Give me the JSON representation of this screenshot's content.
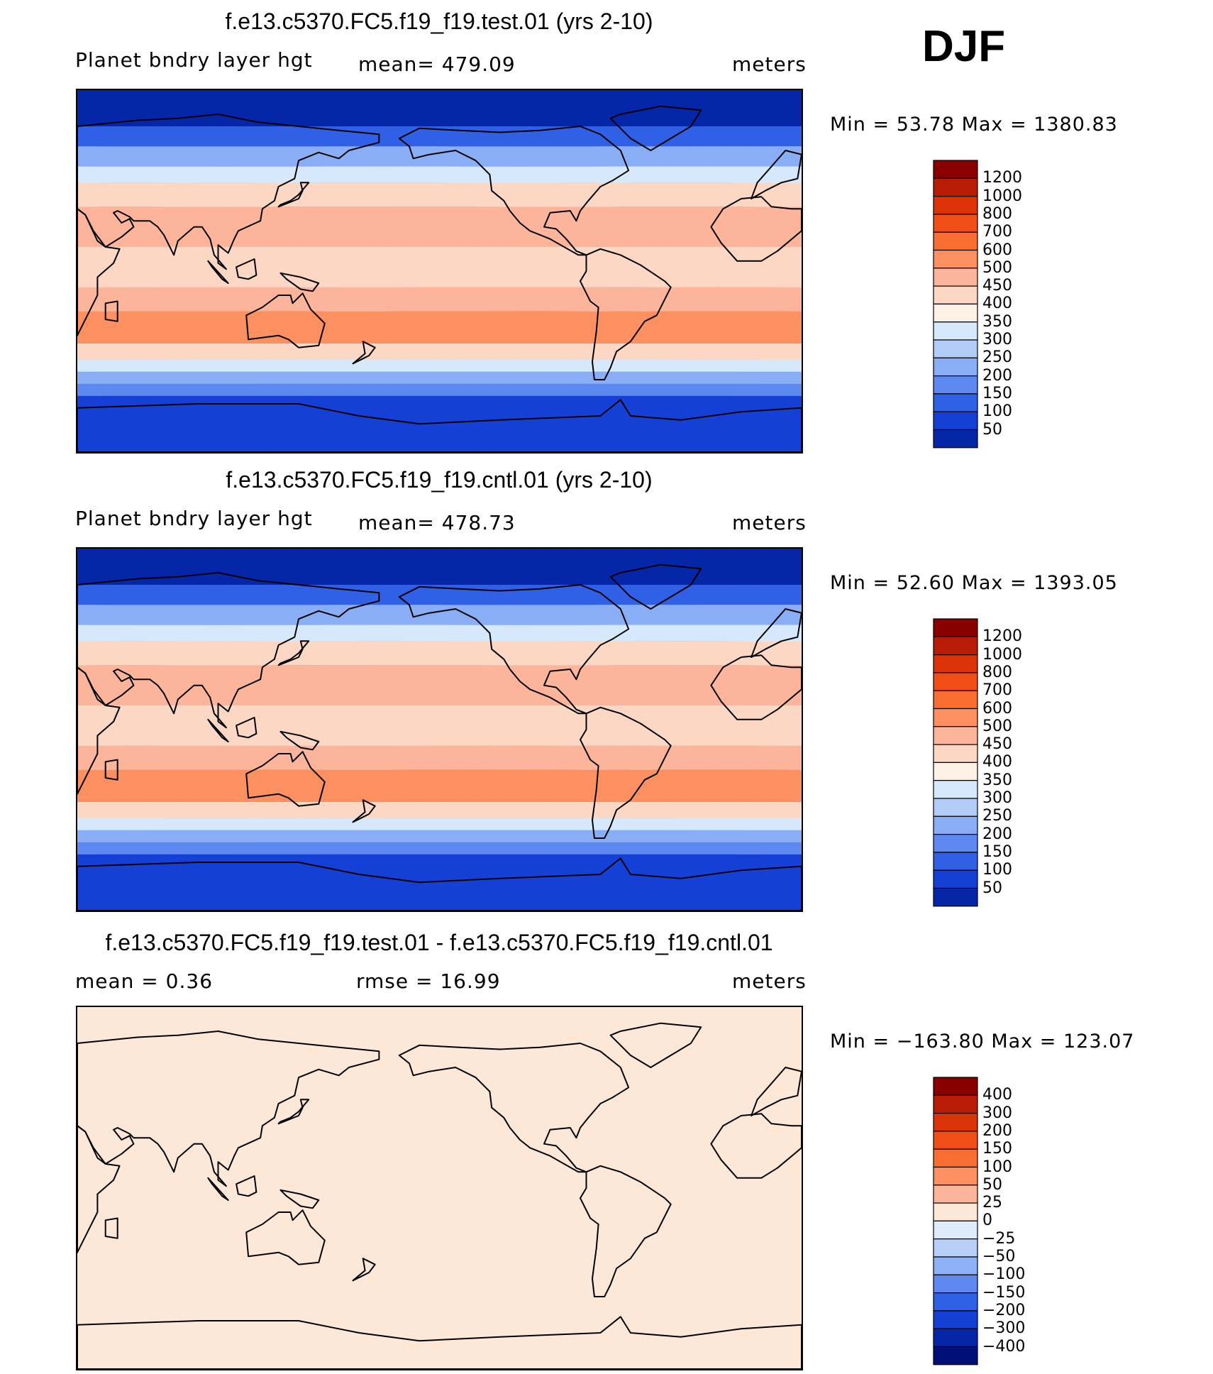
{
  "season": "DJF",
  "panels": [
    {
      "title": "f.e13.c5370.FC5.f19_f19.test.01 (yrs 2-10)",
      "left_label": "Planet bndry layer hgt",
      "center_label": "mean=  479.09",
      "units": "meters",
      "minmax": "Min =   53.78  Max =  1380.83",
      "kind": "abs",
      "colorbar": {
        "levels": [
          "1200",
          "1000",
          "800",
          "700",
          "600",
          "500",
          "450",
          "400",
          "350",
          "300",
          "250",
          "200",
          "150",
          "100",
          "50"
        ],
        "colors": [
          "#8a0000",
          "#b81c04",
          "#dc3208",
          "#f04e14",
          "#f86e32",
          "#fc9060",
          "#fcb49a",
          "#fcd8c4",
          "#fdf0e4",
          "#d6e8fb",
          "#b2ccf8",
          "#8aaef5",
          "#5c88f0",
          "#3060e6",
          "#1440d6",
          "#0626a8"
        ]
      }
    },
    {
      "title": "f.e13.c5370.FC5.f19_f19.cntl.01 (yrs 2-10)",
      "left_label": "Planet bndry layer hgt",
      "center_label": "mean=  478.73",
      "units": "meters",
      "minmax": "Min =   52.60  Max =  1393.05",
      "kind": "abs",
      "colorbar": {
        "levels": [
          "1200",
          "1000",
          "800",
          "700",
          "600",
          "500",
          "450",
          "400",
          "350",
          "300",
          "250",
          "200",
          "150",
          "100",
          "50"
        ],
        "colors": [
          "#8a0000",
          "#b81c04",
          "#dc3208",
          "#f04e14",
          "#f86e32",
          "#fc9060",
          "#fcb49a",
          "#fcd8c4",
          "#fdf0e4",
          "#d6e8fb",
          "#b2ccf8",
          "#8aaef5",
          "#5c88f0",
          "#3060e6",
          "#1440d6",
          "#0626a8"
        ]
      }
    },
    {
      "title": "f.e13.c5370.FC5.f19_f19.test.01 - f.e13.c5370.FC5.f19_f19.cntl.01",
      "left_label": "mean =     0.36",
      "center_label": "rmse =    16.99",
      "units": "meters",
      "minmax": "Min = −163.80  Max =  123.07",
      "kind": "diff",
      "colorbar": {
        "levels": [
          "400",
          "300",
          "200",
          "150",
          "100",
          "50",
          "25",
          "0",
          "−25",
          "−50",
          "−100",
          "−150",
          "−200",
          "−300",
          "−400"
        ],
        "colors": [
          "#8a0000",
          "#b81c04",
          "#dc3208",
          "#f04e14",
          "#f86e32",
          "#fc9060",
          "#fcb49a",
          "#fde8d8",
          "#deebfb",
          "#b8d0f8",
          "#8eb0f4",
          "#5c88f0",
          "#3060e6",
          "#1440d6",
          "#0626a8",
          "#00107a"
        ]
      }
    }
  ]
}
